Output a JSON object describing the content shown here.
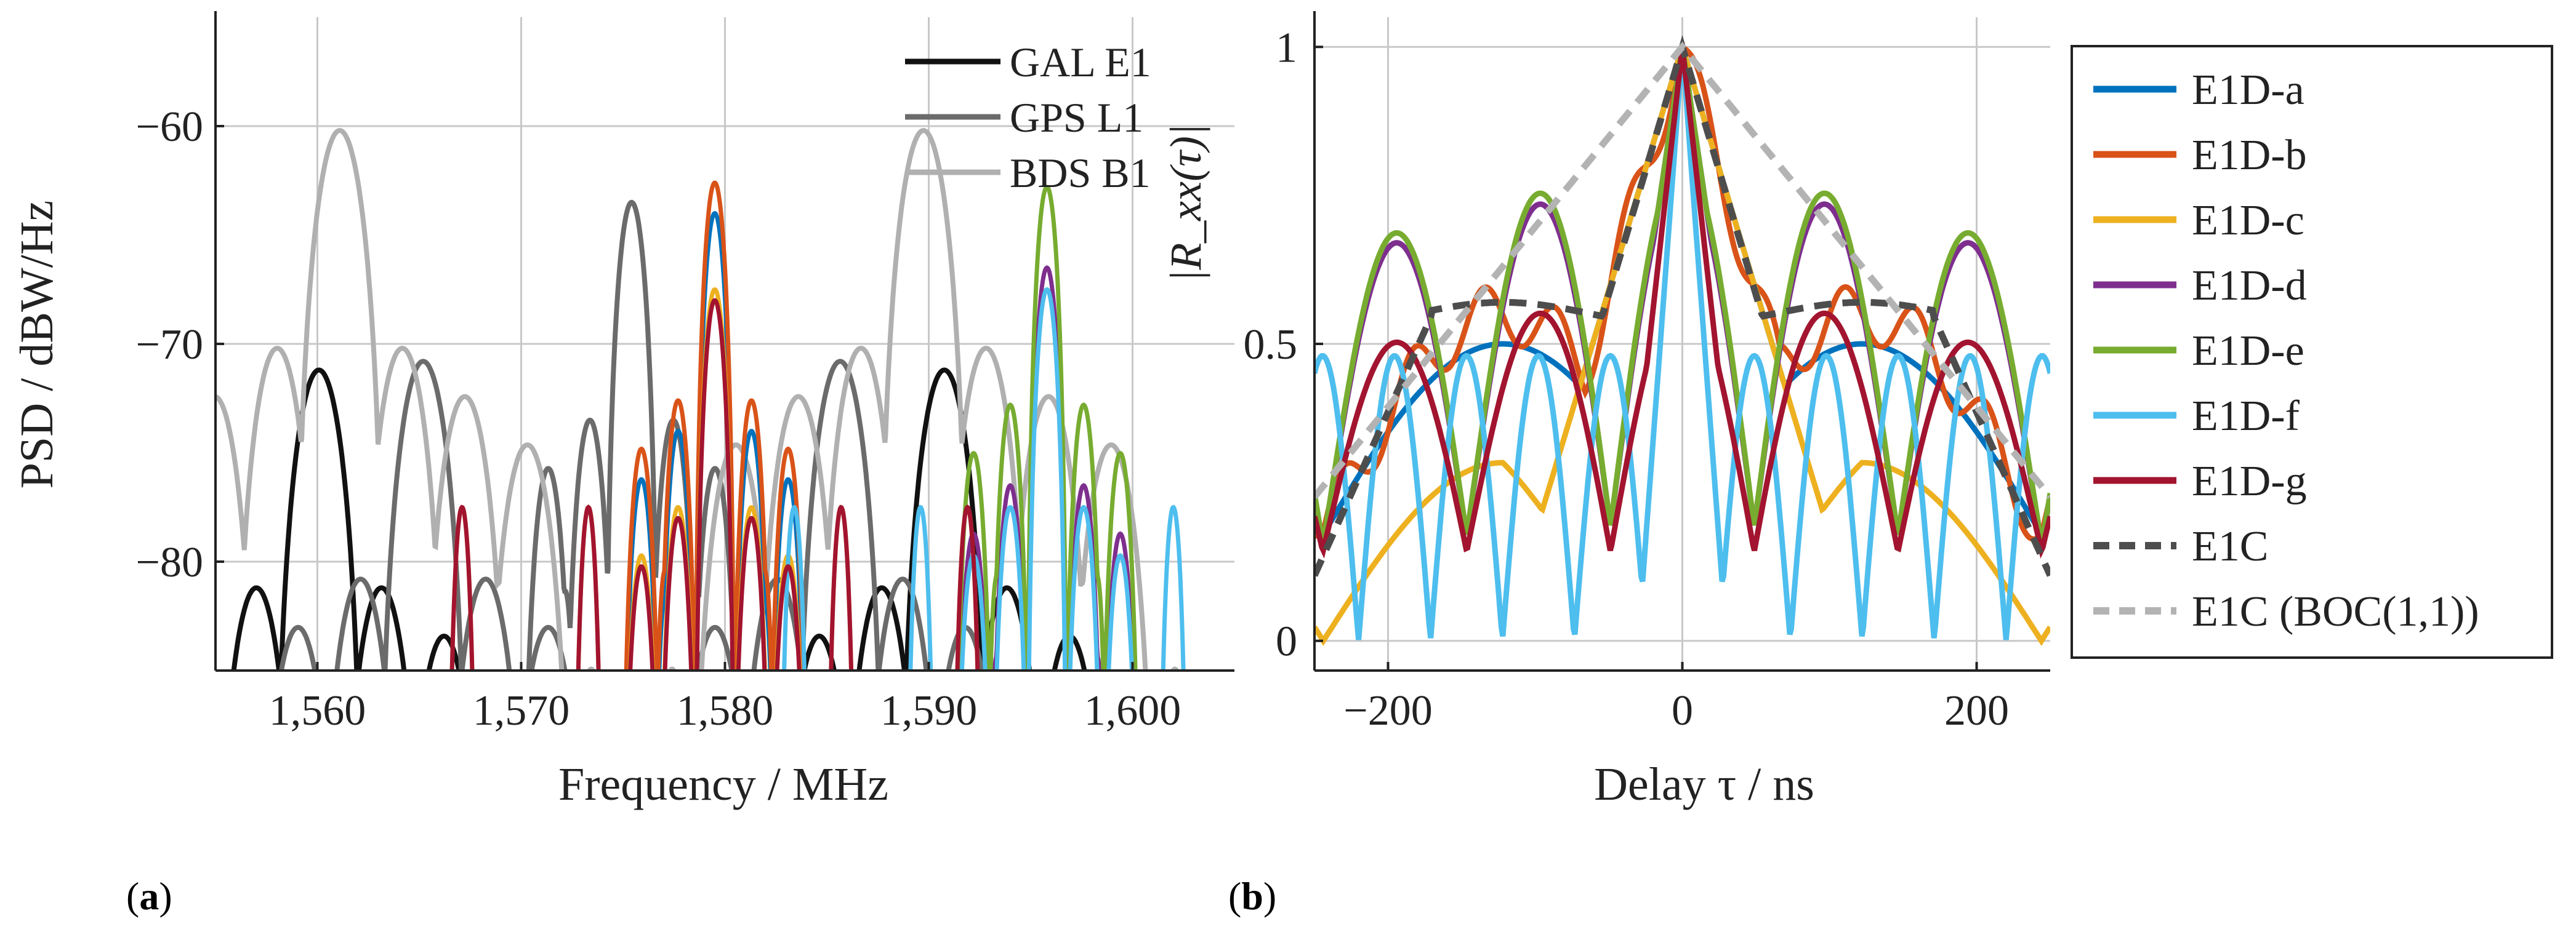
{
  "figure": {
    "panel_a_tag": "a",
    "panel_b_tag": "b"
  },
  "chart_data": [
    {
      "type": "line",
      "panel": "a",
      "xlabel": "Frequency / MHz",
      "ylabel": "PSD / dBW/Hz",
      "xlim": [
        1555,
        1605
      ],
      "ylim": [
        -85,
        -55
      ],
      "xticks": [
        1560,
        1570,
        1580,
        1590,
        1600
      ],
      "xtick_labels": [
        "1,560",
        "1,570",
        "1,580",
        "1,590",
        "1,600"
      ],
      "yticks": [
        -80,
        -70,
        -60
      ],
      "ytick_labels": [
        "−80",
        "−70",
        "−60"
      ],
      "grid": true,
      "legend_position": "top-right",
      "series": [
        {
          "name": "GAL E1",
          "color": "#111111",
          "center": 1575.42,
          "rate": 1.023,
          "sub": 15.345,
          "peak": -71.2,
          "shape": "boc"
        },
        {
          "name": "GPS L1",
          "color": "#6b6b6b",
          "center": 1575.42,
          "rate": 1.023,
          "sub": 10.23,
          "peak": -70.8,
          "central_peak": -63.5,
          "shape": "boc"
        },
        {
          "name": "BDS B1",
          "color": "#b0b0b0",
          "center": 1575.42,
          "rate": 1.023,
          "sub": 14.322,
          "peak": -60.2,
          "shape": "boc"
        }
      ],
      "component_lobes": [
        {
          "color": "#0072BD",
          "center": 1579.5,
          "peak": -64.0
        },
        {
          "color": "#D95319",
          "center": 1579.5,
          "peak": -62.6
        },
        {
          "color": "#EDB120",
          "center": 1579.5,
          "peak": -67.5,
          "side_peak": -77.5
        },
        {
          "color": "#7E2F8E",
          "center": 1595.8,
          "peak": -66.5
        },
        {
          "color": "#77AC30",
          "center": 1595.8,
          "peak": -62.8
        },
        {
          "color": "#4DBEEE",
          "center": 1595.8,
          "peak": -67.5,
          "side_peak": -77.5
        },
        {
          "color": "#A2142F",
          "center": 1579.5,
          "peak": -68.0,
          "side_peak": -77.5
        }
      ]
    },
    {
      "type": "line",
      "panel": "b",
      "xlabel": "Delay τ / ns",
      "ylabel": "|R_xx(τ)|",
      "xlim": [
        -250,
        250
      ],
      "ylim": [
        -0.05,
        1.05
      ],
      "xticks": [
        -200,
        0,
        200
      ],
      "xtick_labels": [
        "−200",
        "0",
        "200"
      ],
      "yticks": [
        0,
        0.5,
        1
      ],
      "ytick_labels": [
        "0",
        "0.5",
        "1"
      ],
      "grid": true,
      "legend_position": "outside-right",
      "series": [
        {
          "name": "E1D-a",
          "color": "#0072BD",
          "dash": false,
          "kind": "osc",
          "base": 0.5,
          "dip": 0.18,
          "osc_period": 244,
          "fine": 0
        },
        {
          "name": "E1D-b",
          "color": "#D95319",
          "dash": false,
          "kind": "osc",
          "base": 0.55,
          "dip": 0.18,
          "osc_period": 244,
          "fine": 0.05
        },
        {
          "name": "E1D-c",
          "color": "#EDB120",
          "dash": false,
          "kind": "tri",
          "base": 0.3,
          "dip": 0.0,
          "osc_period": 244,
          "fine": 0
        },
        {
          "name": "E1D-d",
          "color": "#7E2F8E",
          "dash": false,
          "kind": "fine",
          "base": 0.6,
          "dip": 0.2,
          "osc_period": 97.7,
          "fine": 0.45
        },
        {
          "name": "E1D-e",
          "color": "#77AC30",
          "dash": false,
          "kind": "fine",
          "base": 0.62,
          "dip": 0.2,
          "osc_period": 97.7,
          "fine": 0.5
        },
        {
          "name": "E1D-f",
          "color": "#4DBEEE",
          "dash": false,
          "kind": "deep",
          "base": 0.48,
          "dip": 0.0,
          "osc_period": 48.9,
          "fine": 0.55
        },
        {
          "name": "E1D-g",
          "color": "#A2142F",
          "dash": false,
          "kind": "mid",
          "base": 0.6,
          "dip": 0.15,
          "osc_period": 97.7,
          "fine": 0.4
        },
        {
          "name": "E1C",
          "color": "#4d4d4d",
          "dash": true,
          "kind": "flat",
          "base": 0.55,
          "dip": 0.1,
          "osc_period": 244,
          "fine": 0
        },
        {
          "name": "E1C (BOC(1,1))",
          "color": "#b3b3b3",
          "dash": true,
          "kind": "boc11",
          "base": 0.23,
          "dip": 0.23,
          "osc_period": 977,
          "fine": 0
        }
      ]
    }
  ]
}
